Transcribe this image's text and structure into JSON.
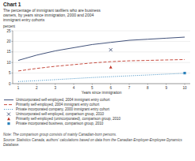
{
  "chart_data": {
    "type": "line",
    "title": "Chart 1",
    "subtitle": [
      "The percentage of immigrant taxfilers who are business",
      "owners, by years since immigration, 2000 and 2004",
      "immigrant entry cohorts"
    ],
    "y_label": "percent",
    "x_label": "Years since immigration",
    "x": [
      1,
      2,
      3,
      4,
      5,
      6,
      7,
      8,
      9,
      10
    ],
    "xlim": [
      0.7,
      10.3
    ],
    "ylim": [
      0,
      25
    ],
    "xticks": [
      1,
      2,
      3,
      4,
      5,
      6,
      7,
      8,
      9,
      10
    ],
    "yticks": [
      0,
      5,
      10,
      15,
      20,
      25
    ],
    "grid": "y",
    "legend": "bottom",
    "series": [
      {
        "name": "Unincorporated self-employed, 2004 immigrant entry cohort",
        "type": "line",
        "color": "#2c3e6b",
        "line_style": "solid",
        "values": [
          11.0,
          13.5,
          15.5,
          17.0,
          18.5,
          19.5,
          20.5,
          21.0,
          21.5,
          22.0
        ]
      },
      {
        "name": "Primarily self-employed, 2004 immigrant entry cohort",
        "type": "line",
        "color": "#c0392b",
        "line_style": "dashed",
        "values": [
          6.0,
          7.2,
          8.2,
          9.0,
          9.8,
          10.4,
          10.8,
          11.0,
          11.2,
          11.4
        ]
      },
      {
        "name": "Private incorporated company, 2000 immigrant entry cohort",
        "type": "line",
        "color": "#2980b9",
        "line_style": "dotted",
        "values": [
          1.0,
          1.4,
          1.9,
          2.4,
          2.9,
          3.3,
          3.7,
          4.1,
          4.5,
          4.9
        ]
      },
      {
        "name": "Unincorporated self-employed, comparison group, 2010",
        "type": "scatter",
        "color": "#2c3e6b",
        "marker": "x",
        "x": [
          6
        ],
        "values": [
          16.0
        ]
      },
      {
        "name": "Primarily self-employed (unincorporated), comparison group, 2010",
        "type": "scatter",
        "color": "#c0392b",
        "marker": "triangle",
        "x": [
          6
        ],
        "values": [
          7.8
        ]
      },
      {
        "name": "Private incorporated business, comparison group, 2010",
        "type": "scatter",
        "color": "#2980b9",
        "marker": "square",
        "x": [
          10
        ],
        "values": [
          5.0
        ]
      }
    ],
    "annotations": [
      "Note: The comparison group consists of mainly Canadian-born persons.",
      "Source: Statistics Canada, authors' calculations based on data from the Canadian Employer-Employee Dynamics",
      "Database."
    ]
  }
}
